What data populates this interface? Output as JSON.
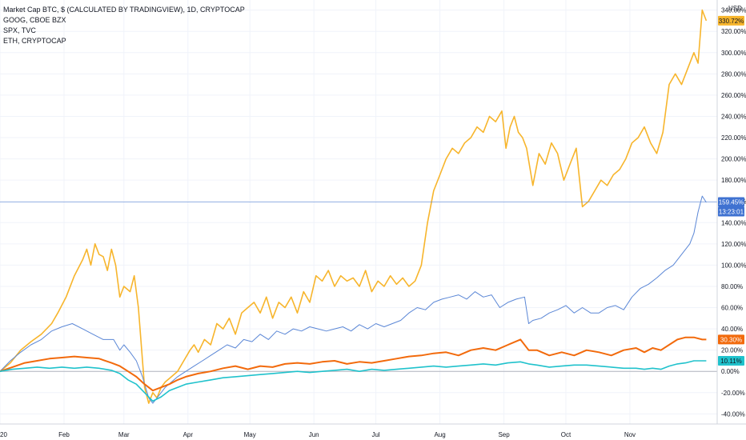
{
  "legend": {
    "line1": "Market Cap BTC, $ (CALCULATED BY TRADINGVIEW), 1D, CRYPTOCAP",
    "line2": "GOOG, CBOE BZX",
    "line3": "SPX, TVC",
    "line4": "ETH, CRYPTOCAP"
  },
  "axis": {
    "currency": "USD",
    "time_badge": "13:23:01"
  },
  "chart_data": {
    "type": "line",
    "ylabel": "",
    "xlabel": "",
    "y_unit": "%",
    "ylim": [
      -48,
      348
    ],
    "xlim_days": [
      0,
      343
    ],
    "y_ticks": [
      "340.00%",
      "320.00%",
      "300.00%",
      "280.00%",
      "260.00%",
      "240.00%",
      "220.00%",
      "200.00%",
      "180.00%",
      "160.00%",
      "140.00%",
      "120.00%",
      "100.00%",
      "80.00%",
      "60.00%",
      "40.00%",
      "20.00%",
      "0.00%",
      "-20.00%",
      "-40.00%"
    ],
    "y_tick_values": [
      340,
      320,
      300,
      280,
      260,
      240,
      220,
      200,
      180,
      160,
      140,
      120,
      100,
      80,
      60,
      40,
      20,
      0,
      -20,
      -40
    ],
    "x_ticks": [
      {
        "label": "20",
        "day": 0
      },
      {
        "label": "Feb",
        "day": 31
      },
      {
        "label": "Mar",
        "day": 60
      },
      {
        "label": "Apr",
        "day": 91
      },
      {
        "label": "May",
        "day": 121
      },
      {
        "label": "Jun",
        "day": 152
      },
      {
        "label": "Jul",
        "day": 182
      },
      {
        "label": "Aug",
        "day": 213
      },
      {
        "label": "Sep",
        "day": 244
      },
      {
        "label": "Oct",
        "day": 274
      },
      {
        "label": "Nov",
        "day": 305
      }
    ],
    "grid": true,
    "crosshair_value": 159.45,
    "series": [
      {
        "name": "ETH, CRYPTOCAP",
        "color": "#f7b52c",
        "last_label": "330.72%",
        "x": [
          0,
          5,
          10,
          15,
          20,
          25,
          28,
          32,
          36,
          40,
          42,
          44,
          46,
          48,
          50,
          52,
          54,
          56,
          58,
          60,
          63,
          65,
          67,
          70,
          72,
          74,
          76,
          78,
          80,
          83,
          86,
          89,
          92,
          94,
          96,
          99,
          102,
          105,
          108,
          111,
          114,
          117,
          120,
          123,
          126,
          129,
          132,
          135,
          138,
          141,
          144,
          147,
          150,
          153,
          156,
          159,
          162,
          165,
          168,
          171,
          174,
          177,
          180,
          183,
          186,
          189,
          192,
          195,
          198,
          201,
          204,
          207,
          210,
          213,
          216,
          219,
          222,
          225,
          228,
          231,
          234,
          237,
          240,
          243,
          245,
          247,
          249,
          251,
          253,
          255,
          258,
          261,
          264,
          267,
          270,
          273,
          276,
          279,
          282,
          285,
          288,
          291,
          294,
          297,
          300,
          303,
          306,
          309,
          312,
          315,
          318,
          321,
          324,
          327,
          330,
          333,
          336,
          338,
          340,
          342
        ],
        "y": [
          0,
          8,
          20,
          28,
          35,
          45,
          55,
          70,
          90,
          105,
          115,
          100,
          120,
          110,
          108,
          95,
          115,
          100,
          70,
          80,
          75,
          90,
          60,
          -15,
          -30,
          -20,
          -25,
          -15,
          -10,
          -5,
          0,
          10,
          20,
          25,
          18,
          30,
          25,
          45,
          40,
          50,
          35,
          55,
          60,
          65,
          55,
          70,
          50,
          65,
          60,
          70,
          55,
          75,
          65,
          90,
          85,
          95,
          80,
          90,
          85,
          88,
          80,
          95,
          75,
          85,
          80,
          90,
          82,
          88,
          80,
          85,
          100,
          140,
          170,
          185,
          200,
          210,
          205,
          215,
          220,
          230,
          225,
          240,
          235,
          245,
          210,
          230,
          240,
          225,
          220,
          210,
          175,
          205,
          195,
          215,
          205,
          180,
          195,
          210,
          155,
          160,
          170,
          180,
          175,
          185,
          190,
          200,
          215,
          220,
          230,
          215,
          205,
          225,
          270,
          280,
          270,
          285,
          300,
          290,
          340,
          330
        ],
        "width": 1.6
      },
      {
        "name": "Market Cap BTC, $ (CALCULATED BY TRADINGVIEW), 1D, CRYPTOCAP",
        "color": "#5b87d6",
        "last_label": "159.45%",
        "x": [
          0,
          5,
          10,
          15,
          20,
          25,
          30,
          35,
          40,
          45,
          50,
          55,
          58,
          60,
          63,
          66,
          69,
          72,
          74,
          76,
          78,
          80,
          83,
          86,
          90,
          94,
          98,
          102,
          106,
          110,
          114,
          118,
          122,
          126,
          130,
          134,
          138,
          142,
          146,
          150,
          154,
          158,
          162,
          166,
          170,
          174,
          178,
          182,
          186,
          190,
          194,
          198,
          202,
          206,
          210,
          214,
          218,
          222,
          226,
          230,
          234,
          238,
          242,
          246,
          250,
          254,
          256,
          258,
          262,
          266,
          270,
          274,
          278,
          282,
          286,
          290,
          294,
          298,
          302,
          306,
          310,
          314,
          318,
          322,
          326,
          330,
          334,
          336,
          338,
          340,
          342
        ],
        "y": [
          0,
          10,
          18,
          25,
          30,
          38,
          42,
          45,
          40,
          35,
          30,
          30,
          20,
          25,
          18,
          10,
          -5,
          -25,
          -30,
          -25,
          -20,
          -15,
          -10,
          -5,
          0,
          5,
          10,
          15,
          20,
          25,
          22,
          30,
          28,
          35,
          30,
          38,
          35,
          40,
          38,
          42,
          40,
          38,
          40,
          42,
          38,
          44,
          40,
          45,
          42,
          45,
          48,
          55,
          60,
          58,
          65,
          68,
          70,
          72,
          68,
          75,
          70,
          72,
          60,
          65,
          68,
          70,
          45,
          48,
          50,
          55,
          58,
          62,
          55,
          60,
          55,
          55,
          60,
          62,
          58,
          70,
          78,
          82,
          88,
          95,
          100,
          110,
          120,
          130,
          150,
          165,
          159
        ],
        "width": 1
      },
      {
        "name": "GOOG, CBOE BZX",
        "color": "#f26a0c",
        "last_label": "30.30%",
        "x": [
          0,
          6,
          12,
          18,
          24,
          30,
          36,
          42,
          48,
          54,
          58,
          62,
          66,
          70,
          74,
          78,
          82,
          86,
          90,
          96,
          102,
          108,
          114,
          120,
          126,
          132,
          138,
          144,
          150,
          156,
          162,
          168,
          174,
          180,
          186,
          192,
          198,
          204,
          210,
          216,
          222,
          228,
          234,
          240,
          246,
          252,
          256,
          260,
          266,
          272,
          278,
          284,
          290,
          296,
          302,
          308,
          312,
          316,
          320,
          324,
          328,
          332,
          336,
          340,
          342
        ],
        "y": [
          0,
          4,
          8,
          10,
          12,
          13,
          14,
          13,
          12,
          8,
          5,
          0,
          -5,
          -12,
          -18,
          -15,
          -12,
          -8,
          -5,
          -2,
          0,
          3,
          5,
          2,
          5,
          4,
          7,
          8,
          7,
          9,
          10,
          7,
          9,
          8,
          10,
          12,
          14,
          15,
          17,
          18,
          15,
          20,
          22,
          20,
          25,
          30,
          20,
          20,
          15,
          18,
          15,
          20,
          18,
          15,
          20,
          22,
          18,
          22,
          20,
          25,
          30,
          32,
          32,
          30,
          30
        ],
        "width": 2
      },
      {
        "name": "SPX, TVC",
        "color": "#20c2cc",
        "last_label": "10.11%",
        "x": [
          0,
          6,
          12,
          18,
          24,
          30,
          36,
          42,
          48,
          54,
          58,
          62,
          66,
          70,
          74,
          78,
          82,
          86,
          90,
          96,
          102,
          108,
          114,
          120,
          126,
          132,
          138,
          144,
          150,
          156,
          162,
          168,
          174,
          180,
          186,
          192,
          198,
          204,
          210,
          216,
          222,
          228,
          234,
          240,
          246,
          252,
          256,
          260,
          266,
          272,
          278,
          284,
          290,
          296,
          302,
          308,
          312,
          316,
          320,
          324,
          328,
          332,
          336,
          340,
          342
        ],
        "y": [
          0,
          2,
          3,
          4,
          3,
          4,
          3,
          4,
          3,
          1,
          -2,
          -8,
          -12,
          -20,
          -28,
          -24,
          -18,
          -15,
          -12,
          -10,
          -8,
          -6,
          -5,
          -4,
          -3,
          -2,
          -1,
          0,
          -1,
          0,
          1,
          2,
          0,
          2,
          1,
          2,
          3,
          4,
          5,
          4,
          5,
          6,
          7,
          6,
          8,
          9,
          7,
          6,
          4,
          5,
          6,
          6,
          5,
          4,
          3,
          3,
          2,
          3,
          2,
          5,
          7,
          8,
          10,
          10,
          10
        ],
        "width": 1.6
      }
    ]
  }
}
